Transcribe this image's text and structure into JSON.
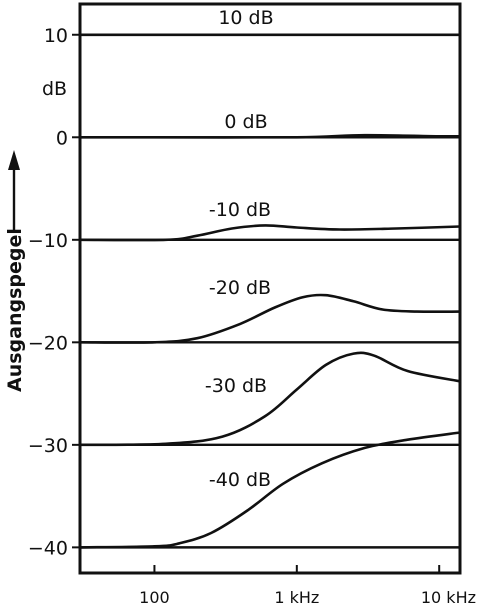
{
  "chart_data": {
    "type": "line",
    "title": "",
    "xlabel": "",
    "ylabel": "Ausgangspegel",
    "y_unit_label": "dB",
    "xscale": "log",
    "xlim": [
      30,
      14000
    ],
    "ylim": [
      -42.5,
      13
    ],
    "x_ticks": [
      {
        "value": 100,
        "label": "100"
      },
      {
        "value": 1000,
        "label": "1 kHz"
      },
      {
        "value": 10000,
        "label": "10 kHz"
      }
    ],
    "y_ticks": [
      {
        "value": 10,
        "label": "10"
      },
      {
        "value": 0,
        "label": "0"
      },
      {
        "value": -10,
        "label": "−10"
      },
      {
        "value": -20,
        "label": "−20"
      },
      {
        "value": -30,
        "label": "−30"
      },
      {
        "value": -40,
        "label": "−40"
      }
    ],
    "grid": false,
    "series": [
      {
        "name": "10 dB",
        "x": [
          30,
          100,
          1000,
          10000,
          14000
        ],
        "y": [
          10,
          10,
          10,
          10,
          10
        ]
      },
      {
        "name": "0 dB",
        "x": [
          30,
          100,
          1000,
          3000,
          10000,
          14000
        ],
        "y": [
          0,
          0,
          0,
          0.2,
          0.1,
          0.1
        ]
      },
      {
        "name": "-10 dB",
        "x": [
          30,
          120,
          200,
          350,
          600,
          1000,
          2000,
          5000,
          14000
        ],
        "y": [
          -10,
          -10,
          -9.6,
          -8.9,
          -8.6,
          -8.8,
          -9.0,
          -8.9,
          -8.7
        ]
      },
      {
        "name": "-20 dB",
        "x": [
          30,
          100,
          200,
          400,
          700,
          1100,
          1600,
          2500,
          4000,
          7000,
          14000
        ],
        "y": [
          -20,
          -20,
          -19.6,
          -18.2,
          -16.6,
          -15.6,
          -15.4,
          -16.0,
          -16.8,
          -17.0,
          -17.0
        ]
      },
      {
        "name": "-30 dB",
        "x": [
          30,
          120,
          300,
          600,
          1000,
          1600,
          2500,
          3500,
          6000,
          14000
        ],
        "y": [
          -30,
          -29.9,
          -29.2,
          -27.2,
          -24.6,
          -22.2,
          -21.1,
          -21.3,
          -22.8,
          -23.8
        ]
      },
      {
        "name": "-40 dB",
        "x": [
          30,
          100,
          150,
          250,
          450,
          800,
          1500,
          3000,
          6000,
          14000
        ],
        "y": [
          -40,
          -39.9,
          -39.6,
          -38.6,
          -36.4,
          -33.8,
          -31.8,
          -30.3,
          -29.5,
          -28.8
        ]
      }
    ],
    "curve_labels": [
      "10 dB",
      "0 dB",
      "-10 dB",
      "-20 dB",
      "-30 dB",
      "-40 dB"
    ]
  }
}
